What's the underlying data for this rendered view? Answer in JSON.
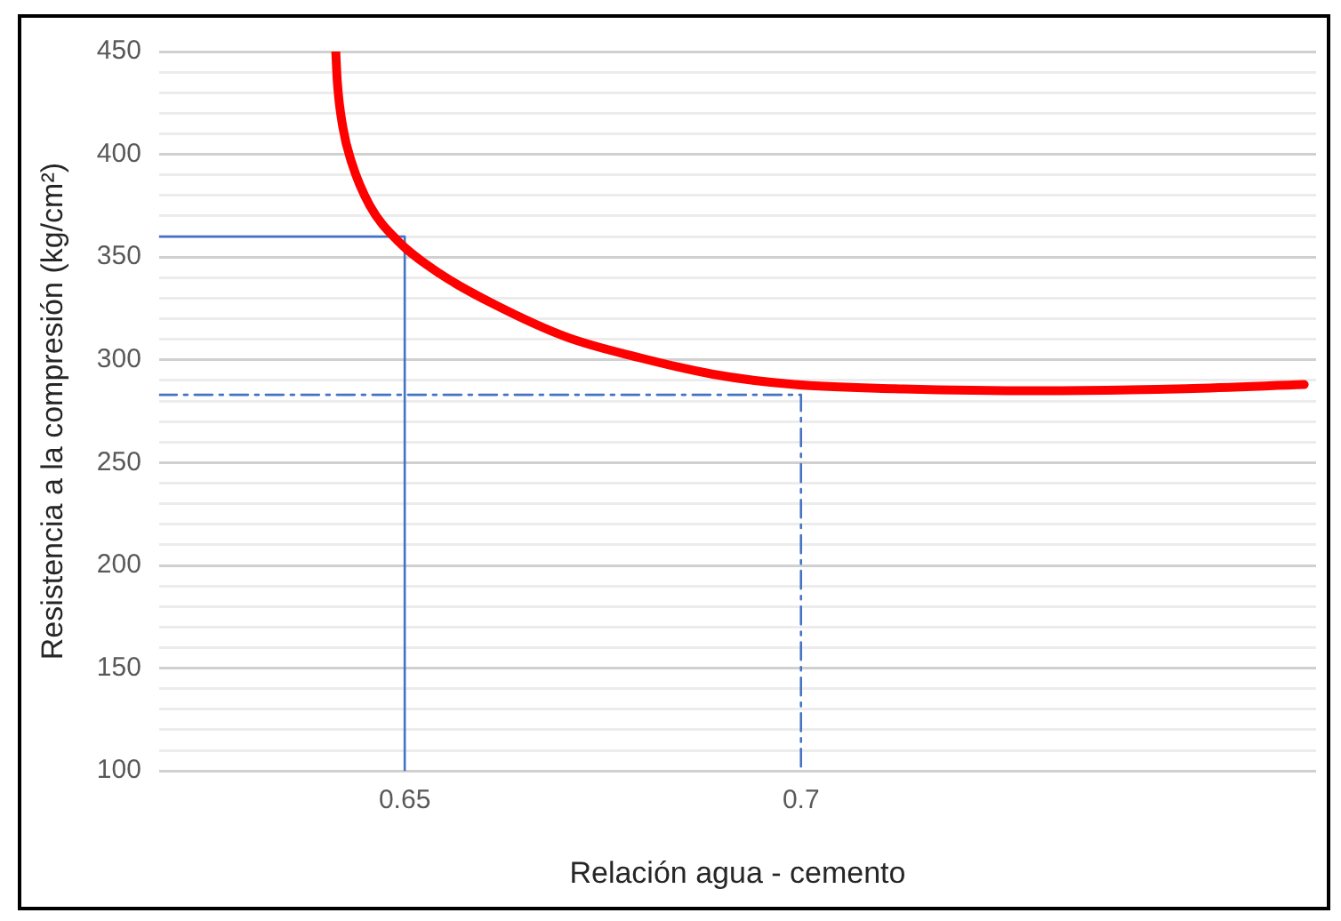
{
  "chart_data": {
    "type": "line",
    "xlabel": "Relación agua - cemento",
    "ylabel": "Resistencia a la compresión (kg/cm²)",
    "xlim": [
      0.619,
      0.765
    ],
    "xticks": [
      0.65,
      0.7
    ],
    "ylim": [
      100,
      450
    ],
    "yticks": [
      100,
      {
        "value": 110,
        "label": null
      },
      {
        "value": 120,
        "label": null
      },
      {
        "value": 130,
        "label": null
      },
      {
        "value": 140,
        "label": null
      },
      150,
      {
        "value": 160,
        "label": null
      },
      {
        "value": 170,
        "label": null
      },
      {
        "value": 180,
        "label": null
      },
      {
        "value": 190,
        "label": null
      },
      200,
      {
        "value": 210,
        "label": null
      },
      {
        "value": 220,
        "label": null
      },
      {
        "value": 230,
        "label": null
      },
      {
        "value": 240,
        "label": null
      },
      250,
      {
        "value": 260,
        "label": null
      },
      {
        "value": 270,
        "label": null
      },
      {
        "value": 280,
        "label": null
      },
      {
        "value": 290,
        "label": null
      },
      300,
      {
        "value": 310,
        "label": null
      },
      {
        "value": 320,
        "label": null
      },
      {
        "value": 330,
        "label": null
      },
      {
        "value": 340,
        "label": null
      },
      350,
      {
        "value": 360,
        "label": null
      },
      {
        "value": 370,
        "label": null
      },
      {
        "value": 380,
        "label": null
      },
      {
        "value": 390,
        "label": null
      },
      400,
      {
        "value": 410,
        "label": null
      },
      {
        "value": 420,
        "label": null
      },
      {
        "value": 430,
        "label": null
      },
      {
        "value": 440,
        "label": null
      },
      450
    ],
    "grid": "y",
    "marker": "none",
    "series": [
      {
        "color": "#ff0000",
        "line_style": "solid",
        "x": [
          0.6413,
          0.6415,
          0.6422,
          0.6433,
          0.6456,
          0.6491,
          0.6544,
          0.6613,
          0.6705,
          0.6797,
          0.6889,
          0.6992,
          0.7118,
          0.7302,
          0.7486,
          0.7635
        ],
        "values": [
          450,
          435,
          413,
          396,
          375,
          358,
          342,
          327,
          311,
          301,
          293,
          288,
          286,
          285,
          286,
          288
        ]
      },
      {
        "color": "#4472c4",
        "line_style": "solid",
        "x": [
          0.619,
          0.65,
          0.65
        ],
        "values": [
          360,
          360,
          100
        ]
      },
      {
        "color": "#4472c4",
        "line_style": "dashed",
        "x": [
          0.619,
          0.7,
          0.7
        ],
        "values": [
          283,
          283,
          100
        ]
      }
    ]
  }
}
